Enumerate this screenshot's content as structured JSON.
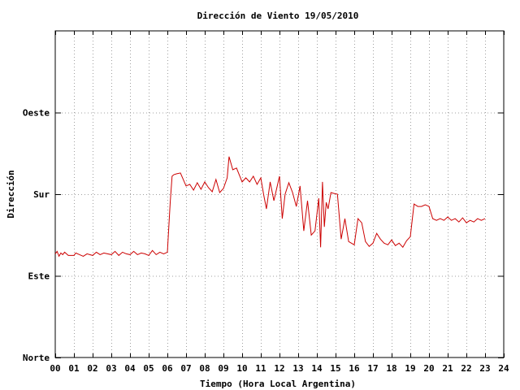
{
  "chart_data": {
    "type": "line",
    "title": "Dirección de Viento 19/05/2010",
    "xlabel": "Tiempo (Hora Local Argentina)",
    "ylabel": "Dirección",
    "xlim": [
      0,
      24
    ],
    "ylim": [
      0,
      4
    ],
    "x_ticks": [
      "00",
      "01",
      "02",
      "03",
      "04",
      "05",
      "06",
      "07",
      "08",
      "09",
      "10",
      "11",
      "12",
      "13",
      "14",
      "15",
      "16",
      "17",
      "18",
      "19",
      "20",
      "21",
      "22",
      "23",
      "24"
    ],
    "y_ticks": [
      {
        "value": 0,
        "label": "Norte"
      },
      {
        "value": 1,
        "label": "Este"
      },
      {
        "value": 2,
        "label": "Sur"
      },
      {
        "value": 3,
        "label": "Oeste"
      }
    ],
    "grid": true,
    "line_color": "#cc0000",
    "series": [
      {
        "x": [
          0.0,
          0.1,
          0.2,
          0.3,
          0.4,
          0.5,
          0.7,
          1.0,
          1.1,
          1.3,
          1.5,
          1.7,
          2.0,
          2.2,
          2.4,
          2.6,
          3.0,
          3.2,
          3.4,
          3.6,
          3.8,
          4.0,
          4.2,
          4.4,
          4.6,
          4.8,
          5.0,
          5.2,
          5.4,
          5.6,
          5.8,
          6.0,
          6.15,
          6.25,
          6.35,
          6.5,
          6.7,
          7.0,
          7.2,
          7.4,
          7.6,
          7.8,
          8.0,
          8.2,
          8.4,
          8.6,
          8.8,
          9.0,
          9.2,
          9.3,
          9.5,
          9.7,
          10.0,
          10.2,
          10.4,
          10.6,
          10.8,
          11.0,
          11.15,
          11.3,
          11.5,
          11.7,
          12.0,
          12.15,
          12.3,
          12.5,
          12.7,
          12.9,
          13.1,
          13.3,
          13.5,
          13.7,
          13.9,
          14.1,
          14.2,
          14.3,
          14.4,
          14.5,
          14.6,
          14.75,
          14.9,
          15.1,
          15.3,
          15.5,
          15.7,
          16.0,
          16.2,
          16.4,
          16.6,
          16.8,
          17.0,
          17.2,
          17.4,
          17.6,
          17.8,
          18.0,
          18.2,
          18.4,
          18.6,
          18.8,
          19.0,
          19.2,
          19.4,
          19.6,
          19.8,
          20.0,
          20.2,
          20.4,
          20.6,
          20.8,
          21.0,
          21.2,
          21.4,
          21.6,
          21.8,
          22.0,
          22.2,
          22.4,
          22.6,
          22.8,
          23.0
        ],
        "y": [
          1.27,
          1.3,
          1.24,
          1.28,
          1.26,
          1.29,
          1.25,
          1.25,
          1.28,
          1.26,
          1.24,
          1.27,
          1.25,
          1.29,
          1.26,
          1.28,
          1.26,
          1.3,
          1.25,
          1.29,
          1.27,
          1.26,
          1.3,
          1.26,
          1.28,
          1.27,
          1.25,
          1.31,
          1.26,
          1.29,
          1.27,
          1.29,
          1.9,
          2.22,
          2.24,
          2.25,
          2.26,
          2.1,
          2.12,
          2.05,
          2.14,
          2.06,
          2.15,
          2.08,
          2.03,
          2.18,
          2.02,
          2.07,
          2.2,
          2.46,
          2.3,
          2.32,
          2.15,
          2.2,
          2.15,
          2.22,
          2.12,
          2.2,
          2.0,
          1.82,
          2.15,
          1.92,
          2.22,
          1.7,
          2.0,
          2.14,
          2.02,
          1.85,
          2.1,
          1.55,
          1.92,
          1.5,
          1.55,
          1.95,
          1.35,
          2.15,
          1.6,
          1.9,
          1.82,
          2.02,
          2.01,
          2.0,
          1.45,
          1.7,
          1.42,
          1.38,
          1.7,
          1.65,
          1.42,
          1.36,
          1.4,
          1.52,
          1.45,
          1.4,
          1.38,
          1.44,
          1.37,
          1.4,
          1.35,
          1.43,
          1.48,
          1.88,
          1.85,
          1.85,
          1.87,
          1.85,
          1.7,
          1.68,
          1.7,
          1.68,
          1.72,
          1.68,
          1.7,
          1.66,
          1.71,
          1.65,
          1.68,
          1.66,
          1.7,
          1.68,
          1.7
        ]
      }
    ]
  }
}
